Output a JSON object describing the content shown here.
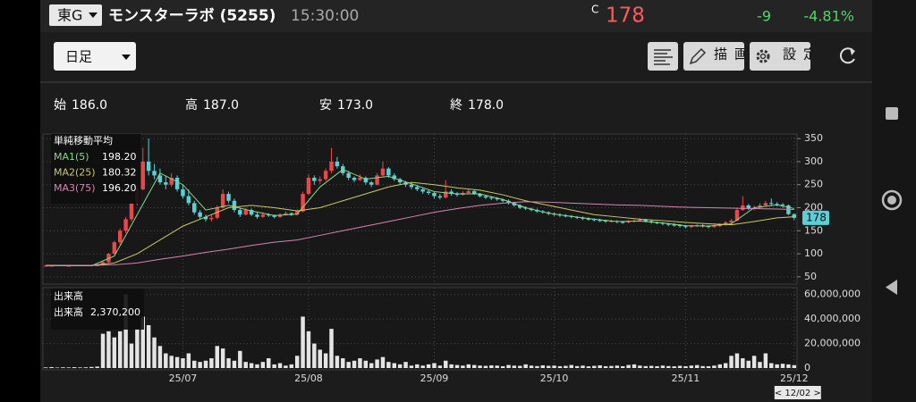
{
  "header": {
    "market": "東G",
    "name": "モンスターラボ (5255)",
    "time": "15:30:00",
    "price_flag": "C",
    "price": "178",
    "change": "-9",
    "change_pct": "-4.81%"
  },
  "toolbar": {
    "period": "日足",
    "draw": "描画",
    "settings": "設定"
  },
  "ohlc": [
    {
      "label": "始",
      "value": "186.0"
    },
    {
      "label": "高",
      "value": "187.0"
    },
    {
      "label": "安",
      "value": "173.0"
    },
    {
      "label": "終",
      "value": "178.0"
    }
  ],
  "date_cursor": "< 12/02 >",
  "chart_data": [
    {
      "type": "candlestick",
      "legend_title": "単純移動平均",
      "up_color": "#e8474c",
      "down_color": "#5ccfd6",
      "xlim": [
        -0.5,
        131.5
      ],
      "ylim": [
        40,
        360
      ],
      "yticks": [
        50,
        100,
        150,
        200,
        250,
        300,
        350
      ],
      "grid": true,
      "last_price": 178,
      "ohlc": [
        [
          74,
          76,
          73,
          74
        ],
        [
          74,
          75,
          73,
          74
        ],
        [
          74,
          76,
          74,
          75
        ],
        [
          75,
          75,
          73,
          74
        ],
        [
          74,
          75,
          73,
          74
        ],
        [
          74,
          76,
          74,
          75
        ],
        [
          75,
          76,
          73,
          74
        ],
        [
          74,
          76,
          74,
          75
        ],
        [
          75,
          75,
          73,
          74
        ],
        [
          74,
          76,
          73,
          75
        ],
        [
          75,
          85,
          74,
          82
        ],
        [
          82,
          102,
          80,
          100
        ],
        [
          100,
          128,
          98,
          125
        ],
        [
          125,
          155,
          120,
          150
        ],
        [
          150,
          180,
          145,
          175
        ],
        [
          175,
          215,
          170,
          210
        ],
        [
          210,
          245,
          205,
          240
        ],
        [
          240,
          330,
          238,
          300
        ],
        [
          300,
          350,
          270,
          280
        ],
        [
          280,
          295,
          262,
          270
        ],
        [
          270,
          285,
          250,
          255
        ],
        [
          255,
          270,
          240,
          250
        ],
        [
          250,
          275,
          245,
          265
        ],
        [
          265,
          270,
          235,
          240
        ],
        [
          240,
          250,
          220,
          225
        ],
        [
          225,
          240,
          205,
          210
        ],
        [
          210,
          215,
          185,
          190
        ],
        [
          190,
          195,
          175,
          180
        ],
        [
          180,
          185,
          170,
          175
        ],
        [
          175,
          185,
          170,
          178
        ],
        [
          178,
          205,
          175,
          200
        ],
        [
          200,
          240,
          198,
          230
        ],
        [
          230,
          235,
          210,
          215
        ],
        [
          215,
          220,
          190,
          195
        ],
        [
          195,
          200,
          180,
          185
        ],
        [
          185,
          200,
          183,
          195
        ],
        [
          195,
          198,
          182,
          185
        ],
        [
          185,
          190,
          176,
          180
        ],
        [
          180,
          190,
          178,
          185
        ],
        [
          185,
          188,
          180,
          183
        ],
        [
          183,
          185,
          177,
          180
        ],
        [
          180,
          188,
          178,
          185
        ],
        [
          185,
          192,
          183,
          188
        ],
        [
          188,
          190,
          182,
          185
        ],
        [
          185,
          196,
          183,
          192
        ],
        [
          192,
          235,
          190,
          230
        ],
        [
          230,
          272,
          228,
          265
        ],
        [
          265,
          270,
          250,
          258
        ],
        [
          258,
          268,
          252,
          262
        ],
        [
          262,
          285,
          258,
          280
        ],
        [
          280,
          330,
          275,
          300
        ],
        [
          300,
          310,
          285,
          290
        ],
        [
          290,
          295,
          270,
          275
        ],
        [
          275,
          280,
          260,
          265
        ],
        [
          265,
          268,
          255,
          260
        ],
        [
          260,
          272,
          258,
          265
        ],
        [
          265,
          268,
          250,
          255
        ],
        [
          255,
          258,
          245,
          250
        ],
        [
          250,
          275,
          248,
          270
        ],
        [
          270,
          300,
          268,
          285
        ],
        [
          285,
          288,
          265,
          270
        ],
        [
          270,
          275,
          258,
          262
        ],
        [
          262,
          265,
          250,
          255
        ],
        [
          255,
          258,
          245,
          250
        ],
        [
          250,
          253,
          240,
          245
        ],
        [
          245,
          250,
          236,
          240
        ],
        [
          240,
          243,
          230,
          235
        ],
        [
          235,
          240,
          228,
          232
        ],
        [
          232,
          234,
          220,
          225
        ],
        [
          225,
          230,
          218,
          222
        ],
        [
          222,
          260,
          220,
          235
        ],
        [
          235,
          240,
          226,
          230
        ],
        [
          230,
          234,
          224,
          228
        ],
        [
          228,
          236,
          226,
          232
        ],
        [
          232,
          240,
          230,
          236
        ],
        [
          236,
          238,
          228,
          230
        ],
        [
          230,
          232,
          222,
          225
        ],
        [
          225,
          228,
          219,
          222
        ],
        [
          222,
          225,
          217,
          220
        ],
        [
          220,
          223,
          215,
          218
        ],
        [
          218,
          220,
          212,
          215
        ],
        [
          215,
          218,
          207,
          210
        ],
        [
          210,
          213,
          202,
          205
        ],
        [
          205,
          208,
          197,
          200
        ],
        [
          200,
          203,
          195,
          198
        ],
        [
          198,
          200,
          192,
          195
        ],
        [
          195,
          198,
          189,
          192
        ],
        [
          192,
          195,
          187,
          190
        ],
        [
          190,
          192,
          184,
          187
        ],
        [
          187,
          190,
          182,
          185
        ],
        [
          185,
          188,
          180,
          183
        ],
        [
          183,
          186,
          179,
          182
        ],
        [
          182,
          184,
          177,
          180
        ],
        [
          180,
          182,
          175,
          178
        ],
        [
          178,
          181,
          173,
          176
        ],
        [
          176,
          179,
          172,
          175
        ],
        [
          175,
          177,
          170,
          173
        ],
        [
          173,
          176,
          169,
          172
        ],
        [
          172,
          174,
          167,
          170
        ],
        [
          170,
          174,
          168,
          171
        ],
        [
          171,
          173,
          166,
          169
        ],
        [
          169,
          171,
          165,
          168
        ],
        [
          168,
          173,
          166,
          170
        ],
        [
          170,
          175,
          168,
          172
        ],
        [
          172,
          178,
          170,
          174
        ],
        [
          174,
          176,
          168,
          171
        ],
        [
          171,
          173,
          165,
          168
        ],
        [
          168,
          170,
          164,
          167
        ],
        [
          167,
          169,
          162,
          165
        ],
        [
          165,
          167,
          160,
          163
        ],
        [
          163,
          166,
          159,
          162
        ],
        [
          162,
          164,
          157,
          160
        ],
        [
          160,
          162,
          155,
          158
        ],
        [
          158,
          163,
          156,
          160
        ],
        [
          160,
          165,
          158,
          162
        ],
        [
          162,
          164,
          157,
          160
        ],
        [
          160,
          162,
          155,
          158
        ],
        [
          158,
          163,
          156,
          160
        ],
        [
          160,
          166,
          158,
          163
        ],
        [
          163,
          171,
          161,
          168
        ],
        [
          168,
          176,
          166,
          172
        ],
        [
          172,
          200,
          170,
          195
        ],
        [
          195,
          225,
          193,
          205
        ],
        [
          205,
          208,
          195,
          198
        ],
        [
          198,
          205,
          194,
          200
        ],
        [
          200,
          210,
          198,
          205
        ],
        [
          205,
          215,
          202,
          210
        ],
        [
          210,
          220,
          204,
          208
        ],
        [
          208,
          212,
          203,
          207
        ],
        [
          207,
          210,
          200,
          205
        ],
        [
          205,
          207,
          184,
          186
        ],
        [
          186,
          187,
          173,
          178
        ]
      ],
      "series": [
        {
          "name": "MA1(5)",
          "color": "#86d886",
          "legend_value": "198.20",
          "x": [
            0,
            4,
            8,
            12,
            16,
            20,
            24,
            28,
            32,
            36,
            40,
            44,
            48,
            52,
            56,
            60,
            64,
            68,
            72,
            76,
            80,
            84,
            88,
            92,
            96,
            100,
            104,
            108,
            112,
            116,
            120,
            124,
            128,
            131
          ],
          "values": [
            74,
            74,
            74,
            95,
            185,
            275,
            250,
            195,
            205,
            193,
            183,
            186,
            245,
            283,
            262,
            268,
            252,
            235,
            230,
            230,
            218,
            200,
            188,
            181,
            175,
            170,
            171,
            167,
            161,
            160,
            165,
            200,
            206,
            198.2
          ]
        },
        {
          "name": "MA2(25)",
          "color": "#c9c96a",
          "legend_value": "180.32",
          "x": [
            0,
            4,
            8,
            12,
            16,
            20,
            24,
            28,
            32,
            36,
            40,
            44,
            48,
            52,
            56,
            60,
            64,
            68,
            72,
            76,
            80,
            84,
            88,
            92,
            96,
            100,
            104,
            108,
            112,
            116,
            120,
            124,
            128,
            131
          ],
          "values": [
            75,
            75,
            75,
            80,
            100,
            130,
            160,
            180,
            200,
            205,
            200,
            193,
            200,
            215,
            230,
            245,
            255,
            250,
            243,
            238,
            228,
            215,
            205,
            195,
            185,
            180,
            175,
            172,
            168,
            165,
            163,
            170,
            178,
            180.32
          ]
        },
        {
          "name": "MA3(75)",
          "color": "#d884b4",
          "legend_value": "196.20",
          "x": [
            0,
            4,
            8,
            12,
            16,
            20,
            24,
            28,
            32,
            36,
            40,
            44,
            48,
            52,
            56,
            60,
            64,
            68,
            72,
            76,
            80,
            84,
            88,
            92,
            96,
            100,
            104,
            108,
            112,
            116,
            120,
            124,
            128,
            131
          ],
          "values": [
            74,
            75,
            75,
            76,
            80,
            88,
            95,
            103,
            110,
            118,
            125,
            130,
            140,
            150,
            160,
            170,
            180,
            190,
            198,
            205,
            210,
            213,
            212,
            210,
            208,
            206,
            205,
            203,
            201,
            200,
            199,
            198,
            197,
            196.2
          ]
        }
      ]
    },
    {
      "type": "bar",
      "title": "出来高",
      "series_label": "出来高",
      "legend_value": "2,370,200",
      "color": "#e4e4e4",
      "xlim": [
        -0.5,
        131.5
      ],
      "xticks": [
        {
          "value": 24,
          "label": "25/07"
        },
        {
          "value": 46,
          "label": "25/08"
        },
        {
          "value": 68,
          "label": "25/09"
        },
        {
          "value": 89,
          "label": "25/10"
        },
        {
          "value": 112,
          "label": "25/11"
        },
        {
          "value": 131,
          "label": "25/12"
        }
      ],
      "ylim": [
        0,
        62000000
      ],
      "yticks": [
        0,
        {
          "value": 20000000,
          "label": "20,000,000"
        },
        {
          "value": 40000000,
          "label": "40,000,000"
        },
        {
          "value": 60000000,
          "label": "60,000,000"
        }
      ],
      "values": [
        500000.0,
        800000.0,
        400000.0,
        600000.0,
        500000.0,
        700000.0,
        500000.0,
        600000.0,
        900000.0,
        1200000.0,
        28000000.0,
        30000000.0,
        25000000.0,
        30000000.0,
        60000000.0,
        20000000.0,
        32000000.0,
        42000000.0,
        35000000.0,
        25000000.0,
        18000000.0,
        12000000.0,
        10000000.0,
        9000000.0,
        8000000.0,
        12000000.0,
        6000000.0,
        5000000.0,
        6000000.0,
        8000000.0,
        18000000.0,
        16000000.0,
        8000000.0,
        6000000.0,
        14000000.0,
        5000000.0,
        4000000.0,
        3000000.0,
        5000000.0,
        8000000.0,
        3000000.0,
        4000000.0,
        2000000.0,
        3000000.0,
        10000000.0,
        42000000.0,
        30000000.0,
        20000000.0,
        15000000.0,
        12000000.0,
        32000000.0,
        10000000.0,
        8000000.0,
        5000000.0,
        6000000.0,
        8000000.0,
        6000000.0,
        4000000.0,
        7000000.0,
        9000000.0,
        5000000.0,
        4000000.0,
        3000000.0,
        5000000.0,
        2000000.0,
        3000000.0,
        2000000.0,
        3000000.0,
        4000000.0,
        2000000.0,
        6000000.0,
        3000000.0,
        2500000.0,
        2000000.0,
        3000000.0,
        2500000.0,
        2000000.0,
        1800000.0,
        2200000.0,
        2000000.0,
        1500000.0,
        2500000.0,
        2000000.0,
        1800000.0,
        3000000.0,
        2000000.0,
        1600000.0,
        2200000.0,
        1800000.0,
        2000000.0,
        1500000.0,
        1800000.0,
        2500000.0,
        1600000.0,
        2000000.0,
        1400000.0,
        1800000.0,
        2200000.0,
        1500000.0,
        1700000.0,
        2000000.0,
        1500000.0,
        2500000.0,
        3000000.0,
        2000000.0,
        1600000.0,
        1800000.0,
        1500000.0,
        2000000.0,
        1600000.0,
        1400000.0,
        1800000.0,
        1500000.0,
        2000000.0,
        2400000.0,
        1600000.0,
        1500000.0,
        2000000.0,
        3000000.0,
        4000000.0,
        10000000.0,
        12000000.0,
        8000000.0,
        6000000.0,
        10000000.0,
        5000000.0,
        12000000.0,
        4000000.0,
        3000000.0,
        3500000.0,
        3000000.0,
        2370200
      ]
    }
  ]
}
